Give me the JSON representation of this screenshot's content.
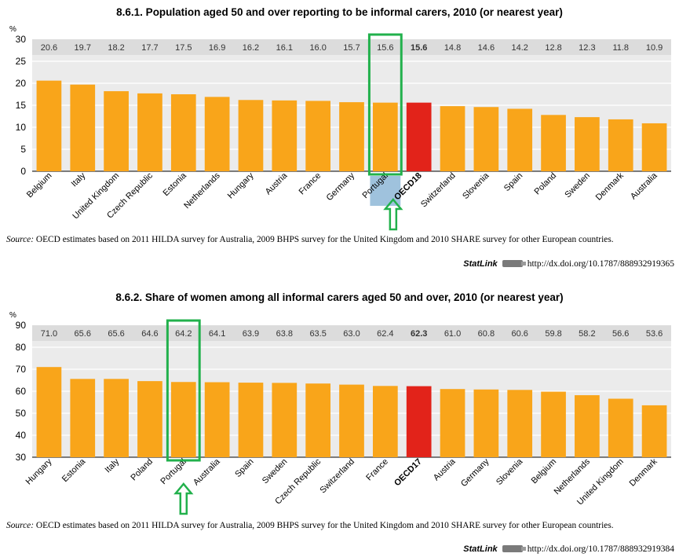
{
  "chart_data": [
    {
      "type": "bar",
      "id": "c1",
      "title": "8.6.1.  Population aged 50 and over reporting to be informal carers, 2010 (or nearest year)",
      "ylabel": "%",
      "ylim": [
        0,
        30
      ],
      "yticks": [
        0,
        5,
        10,
        15,
        20,
        25,
        30
      ],
      "categories": [
        "Belgium",
        "Italy",
        "United Kingdom",
        "Czech Republic",
        "Estonia",
        "Netherlands",
        "Hungary",
        "Austria",
        "France",
        "Germany",
        "Portugal",
        "OECD18",
        "Switzerland",
        "Slovenia",
        "Spain",
        "Poland",
        "Sweden",
        "Denmark",
        "Australia"
      ],
      "values": [
        20.6,
        19.7,
        18.2,
        17.7,
        17.5,
        16.9,
        16.2,
        16.1,
        16.0,
        15.7,
        15.6,
        15.6,
        14.8,
        14.6,
        14.2,
        12.8,
        12.3,
        11.8,
        10.9
      ],
      "value_labels": [
        "20.6",
        "19.7",
        "18.2",
        "17.7",
        "17.5",
        "16.9",
        "16.2",
        "16.1",
        "16.0",
        "15.7",
        "15.6",
        "15.6",
        "14.8",
        "14.6",
        "14.2",
        "12.8",
        "12.3",
        "11.8",
        "10.9"
      ],
      "average_category": "OECD18",
      "highlight_category": "Portugal",
      "colors": {
        "bar": "#f9a51a",
        "average": "#e2231a",
        "grid": "#ffffff",
        "plot_bg": "#ebebeb",
        "value_band": "#dcdcdc",
        "highlight_box": "#22b14c",
        "highlight_label_bg": "#9fc2dd",
        "arrow": "#22b14c"
      }
    },
    {
      "type": "bar",
      "id": "c2",
      "title": "8.6.2.  Share of women among all informal carers aged 50 and over, 2010 (or nearest year)",
      "ylabel": "%",
      "ylim": [
        30,
        90
      ],
      "yticks": [
        30,
        40,
        50,
        60,
        70,
        80,
        90
      ],
      "categories": [
        "Hungary",
        "Estonia",
        "Italy",
        "Poland",
        "Portugal",
        "Australia",
        "Spain",
        "Sweden",
        "Czech Republic",
        "Switzerland",
        "France",
        "OECD17",
        "Austria",
        "Germany",
        "Slovenia",
        "Belgium",
        "Netherlands",
        "United Kingdom",
        "Denmark"
      ],
      "values": [
        71.0,
        65.6,
        65.6,
        64.6,
        64.2,
        64.1,
        63.9,
        63.8,
        63.5,
        63.0,
        62.4,
        62.3,
        61.0,
        60.8,
        60.6,
        59.8,
        58.2,
        56.6,
        53.6
      ],
      "value_labels": [
        "71.0",
        "65.6",
        "65.6",
        "64.6",
        "64.2",
        "64.1",
        "63.9",
        "63.8",
        "63.5",
        "63.0",
        "62.4",
        "62.3",
        "61.0",
        "60.8",
        "60.6",
        "59.8",
        "58.2",
        "56.6",
        "53.6"
      ],
      "average_category": "OECD17",
      "highlight_category": "Portugal",
      "colors": {
        "bar": "#f9a51a",
        "average": "#e2231a",
        "grid": "#ffffff",
        "plot_bg": "#ebebeb",
        "value_band": "#dcdcdc",
        "highlight_box": "#22b14c",
        "highlight_label_bg": "",
        "arrow": "#22b14c"
      }
    }
  ],
  "source1": {
    "label": "Source:",
    "text": " OECD estimates based on 2011 HILDA survey for Australia, 2009 BHPS survey for the United Kingdom and 2010 SHARE survey for other European countries."
  },
  "statlink1": {
    "label": "StatLink",
    "url": "http://dx.doi.org/10.1787/888932919365"
  },
  "source2": {
    "label": "Source:",
    "text": " OECD estimates based on 2011 HILDA survey for Australia, 2009 BHPS survey for the United Kingdom and 2010 SHARE survey for other European countries."
  },
  "statlink2": {
    "label": "StatLink",
    "url": "http://dx.doi.org/10.1787/888932919384"
  },
  "icons": {
    "statlink_logo": "statlink-logo-icon",
    "arrow": "arrow-up-icon"
  }
}
